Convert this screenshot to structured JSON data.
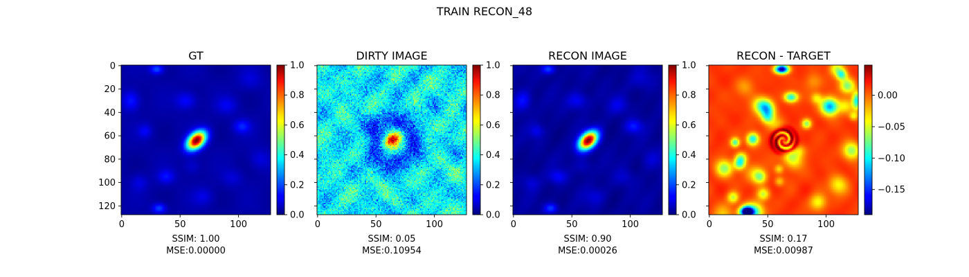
{
  "figure": {
    "suptitle": "TRAIN RECON_48"
  },
  "chart_data": [
    {
      "type": "heatmap",
      "title": "GT",
      "colormap": "jet",
      "image_size": [
        128,
        128
      ],
      "xlim": [
        0,
        127
      ],
      "ylim": [
        127,
        0
      ],
      "xticks": [
        0,
        50,
        100
      ],
      "yticks": [
        0,
        20,
        40,
        60,
        80,
        100,
        120
      ],
      "colorbar": {
        "range": [
          0.0,
          1.0
        ],
        "ticks": [
          "0.0",
          "0.2",
          "0.4",
          "0.6",
          "0.8",
          "1.0"
        ]
      },
      "bright_spot": {
        "x": 64,
        "y": 64,
        "peak": 1.0
      },
      "caption": [
        "SSIM: 1.00",
        "MSE:0.00000"
      ]
    },
    {
      "type": "heatmap",
      "title": "DIRTY IMAGE",
      "colormap": "jet",
      "image_size": [
        128,
        128
      ],
      "xlim": [
        0,
        127
      ],
      "ylim": [
        127,
        0
      ],
      "xticks": [
        0,
        50,
        100
      ],
      "yticks": [],
      "colorbar": {
        "range": [
          0.0,
          1.0
        ],
        "ticks": [
          "0.0",
          "0.2",
          "0.4",
          "0.6",
          "0.8",
          "1.0"
        ]
      },
      "bright_spot": {
        "x": 64,
        "y": 63,
        "peak": 0.95
      },
      "caption": [
        "SSIM: 0.05",
        "MSE:0.10954"
      ]
    },
    {
      "type": "heatmap",
      "title": "RECON IMAGE",
      "colormap": "jet",
      "image_size": [
        128,
        128
      ],
      "xlim": [
        0,
        127
      ],
      "ylim": [
        127,
        0
      ],
      "xticks": [
        0,
        50,
        100
      ],
      "yticks": [],
      "colorbar": {
        "range": [
          0.0,
          1.0
        ],
        "ticks": [
          "0.0",
          "0.2",
          "0.4",
          "0.6",
          "0.8",
          "1.0"
        ]
      },
      "bright_spot": {
        "x": 64,
        "y": 64,
        "peak": 1.0
      },
      "caption": [
        "SSIM: 0.90",
        "MSE:0.00026"
      ]
    },
    {
      "type": "heatmap",
      "title": "RECON - TARGET",
      "colormap": "jet",
      "image_size": [
        128,
        128
      ],
      "xlim": [
        0,
        127
      ],
      "ylim": [
        127,
        0
      ],
      "xticks": [
        0,
        50,
        100
      ],
      "yticks": [],
      "colorbar": {
        "range": [
          -0.19,
          0.048
        ],
        "ticks": [
          "0.00",
          "−0.05",
          "−0.10",
          "−0.15"
        ],
        "tick_values": [
          0.0,
          -0.05,
          -0.1,
          -0.15
        ]
      },
      "caption": [
        "SSIM: 0.17",
        "MSE:0.00987"
      ]
    }
  ]
}
